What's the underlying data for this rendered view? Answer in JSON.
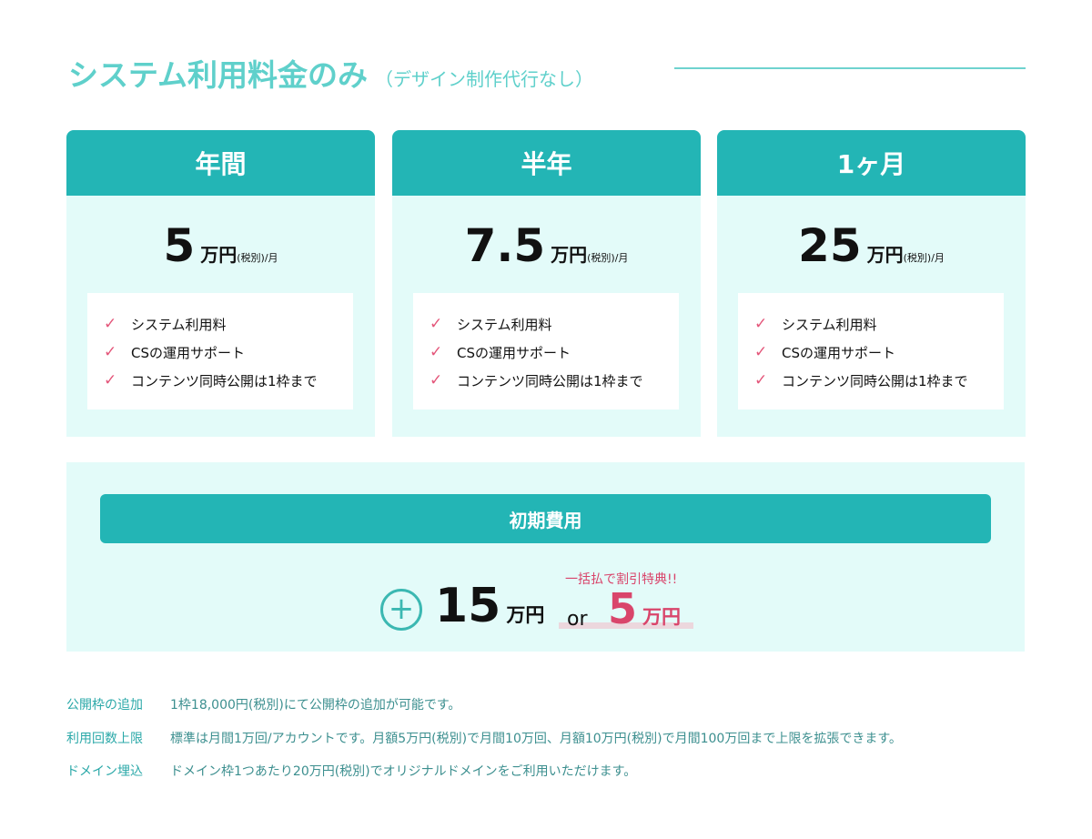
{
  "title": {
    "main": "システム利用料金のみ",
    "sub": "（デザイン制作代行なし）"
  },
  "plans": [
    {
      "name": "年間",
      "price": "5",
      "unit": "万円",
      "tax": "(税別)/月"
    },
    {
      "name": "半年",
      "price": "7.5",
      "unit": "万円",
      "tax": "(税別)/月"
    },
    {
      "name": "1ヶ月",
      "price": "25",
      "unit": "万円",
      "tax": "(税別)/月"
    }
  ],
  "features": [
    "システム利用料",
    "CSの運用サポート",
    "コンテンツ同時公開は1枠まで"
  ],
  "initial": {
    "label": "初期費用",
    "price": "15",
    "unit": "万円",
    "or": "or",
    "promo": "一括払で割引特典!!",
    "discount_price": "5",
    "discount_unit": "万円"
  },
  "notes": [
    {
      "label": "公開枠の追加",
      "text": "1枠18,000円(税別)にて公開枠の追加が可能です。"
    },
    {
      "label": "利用回数上限",
      "text": "標準は月間1万回/アカウントです。月額5万円(税別)で月間10万回、月額10万円(税別)で月間100万回まで上限を拡張できます。"
    },
    {
      "label": "ドメイン埋込",
      "text": "ドメイン枠1つあたり20万円(税別)でオリジナルドメインをご利用いただけます。"
    }
  ],
  "colors": {
    "teal": "#23b5b5",
    "title": "#5fd0cb",
    "pink": "#d9456b",
    "card_bg": "#e3fbf9"
  }
}
